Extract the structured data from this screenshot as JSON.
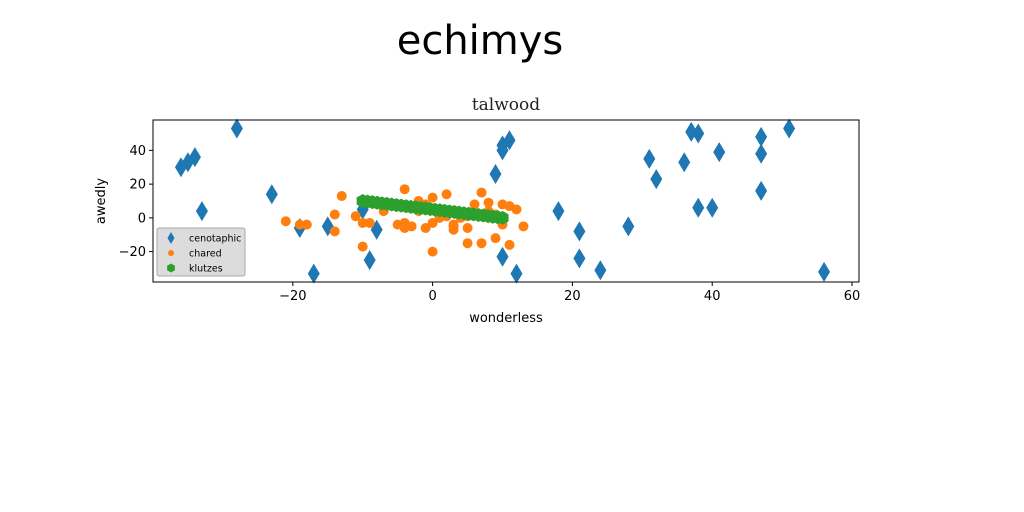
{
  "figure": {
    "suptitle": "echimys"
  },
  "colors": {
    "cenotaphic": "#1f77b4",
    "chared": "#ff7f0e",
    "klutzes": "#2ca02c"
  },
  "chart_data": {
    "type": "scatter",
    "title": "talwood",
    "xlabel": "wonderless",
    "ylabel": "awedly",
    "xlim": [
      -40,
      61
    ],
    "ylim": [
      -38,
      58
    ],
    "xticks": [
      -20,
      0,
      20,
      40,
      60
    ],
    "yticks": [
      -20,
      0,
      20,
      40
    ],
    "legend_position": "lower-left",
    "series": [
      {
        "name": "cenotaphic",
        "marker": "thin_diamond",
        "points": [
          [
            -28,
            53
          ],
          [
            -35,
            33
          ],
          [
            -34,
            36
          ],
          [
            -36,
            30
          ],
          [
            -33,
            4
          ],
          [
            -23,
            14
          ],
          [
            -19,
            -6
          ],
          [
            -17,
            -33
          ],
          [
            -15,
            -5
          ],
          [
            -10,
            5
          ],
          [
            -9,
            -25
          ],
          [
            -8,
            -7
          ],
          [
            9,
            26
          ],
          [
            10,
            40
          ],
          [
            10,
            43
          ],
          [
            11,
            46
          ],
          [
            10,
            -23
          ],
          [
            12,
            -33
          ],
          [
            18,
            4
          ],
          [
            21,
            -8
          ],
          [
            21,
            -24
          ],
          [
            24,
            -31
          ],
          [
            28,
            -5
          ],
          [
            31,
            35
          ],
          [
            32,
            23
          ],
          [
            36,
            33
          ],
          [
            37,
            51
          ],
          [
            38,
            50
          ],
          [
            38,
            6
          ],
          [
            40,
            6
          ],
          [
            41,
            39
          ],
          [
            47,
            48
          ],
          [
            47,
            38
          ],
          [
            47,
            16
          ],
          [
            51,
            53
          ],
          [
            56,
            -32
          ]
        ]
      },
      {
        "name": "chared",
        "marker": "circle",
        "points": [
          [
            -21,
            -2
          ],
          [
            -19,
            -4
          ],
          [
            -18,
            -4
          ],
          [
            -14,
            -8
          ],
          [
            -14,
            2
          ],
          [
            -13,
            13
          ],
          [
            -11,
            1
          ],
          [
            -10,
            -17
          ],
          [
            -10,
            -3
          ],
          [
            -9,
            -3
          ],
          [
            -7,
            4
          ],
          [
            -5,
            -4
          ],
          [
            -4,
            17
          ],
          [
            -4,
            -3
          ],
          [
            -4,
            -6
          ],
          [
            -3,
            -5
          ],
          [
            -2,
            4
          ],
          [
            -2,
            10
          ],
          [
            -1,
            -6
          ],
          [
            -1,
            8
          ],
          [
            0,
            12
          ],
          [
            0,
            -20
          ],
          [
            0,
            -3
          ],
          [
            1,
            2
          ],
          [
            1,
            0
          ],
          [
            2,
            14
          ],
          [
            2,
            1
          ],
          [
            3,
            -4
          ],
          [
            3,
            -7
          ],
          [
            3,
            -5
          ],
          [
            4,
            0
          ],
          [
            5,
            -6
          ],
          [
            5,
            1
          ],
          [
            5,
            -15
          ],
          [
            6,
            8
          ],
          [
            7,
            -15
          ],
          [
            7,
            15
          ],
          [
            8,
            4
          ],
          [
            8,
            9
          ],
          [
            9,
            2
          ],
          [
            9,
            -12
          ],
          [
            10,
            -4
          ],
          [
            10,
            8
          ],
          [
            11,
            7
          ],
          [
            11,
            -16
          ],
          [
            12,
            5
          ],
          [
            13,
            -5
          ]
        ]
      },
      {
        "name": "klutzes",
        "marker": "hexagon",
        "line": {
          "x_start": -10,
          "x_end": 10,
          "y_start": 10,
          "y_end": 0,
          "n": 30
        }
      }
    ]
  }
}
